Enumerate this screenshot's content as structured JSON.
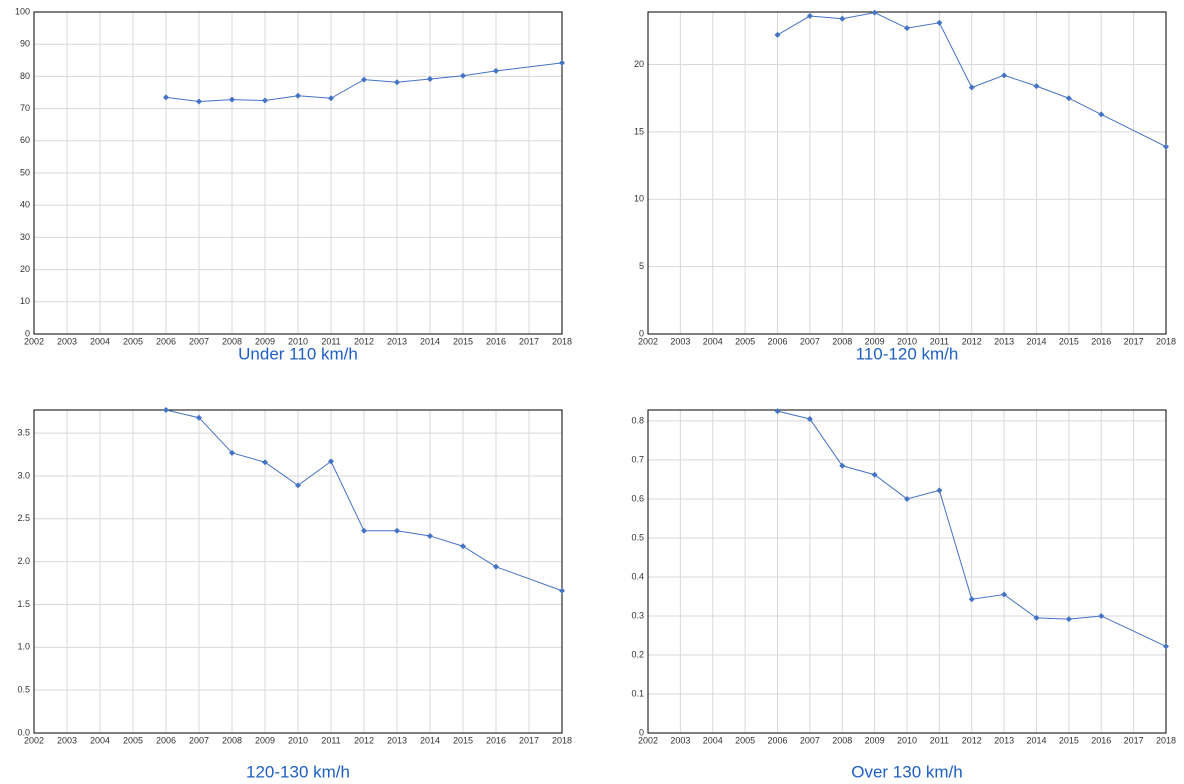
{
  "chart_data": [
    {
      "type": "line",
      "title": "Under 110 km/h",
      "color": "#4472c4",
      "grid": true,
      "x": [
        2006,
        2007,
        2008,
        2009,
        2010,
        2011,
        2012,
        2013,
        2014,
        2015,
        2016,
        2018
      ],
      "values": [
        73.5,
        72.2,
        72.8,
        72.5,
        74.0,
        73.2,
        79.0,
        78.2,
        79.2,
        80.2,
        81.7,
        84.2
      ],
      "xlim": [
        2002,
        2018
      ],
      "xticks": [
        2002,
        2003,
        2004,
        2005,
        2006,
        2007,
        2008,
        2009,
        2010,
        2011,
        2012,
        2013,
        2014,
        2015,
        2016,
        2017,
        2018
      ],
      "ylim": [
        0,
        100
      ],
      "yticks": [
        0,
        10,
        20,
        30,
        40,
        50,
        60,
        70,
        80,
        90,
        100
      ]
    },
    {
      "type": "line",
      "title": "110-120 km/h",
      "color": "#4472c4",
      "grid": true,
      "x": [
        2006,
        2007,
        2008,
        2009,
        2010,
        2011,
        2012,
        2013,
        2014,
        2015,
        2016,
        2018
      ],
      "values": [
        22.2,
        23.6,
        23.4,
        23.85,
        22.7,
        23.1,
        18.3,
        19.2,
        18.4,
        17.5,
        16.3,
        13.9
      ],
      "xlim": [
        2002,
        2018
      ],
      "xticks": [
        2002,
        2003,
        2004,
        2005,
        2006,
        2007,
        2008,
        2009,
        2010,
        2011,
        2012,
        2013,
        2014,
        2015,
        2016,
        2017,
        2018
      ],
      "ylim": [
        0,
        23.9
      ],
      "yticks": [
        0,
        5,
        10,
        15,
        20
      ]
    },
    {
      "type": "line",
      "title": "120-130 km/h",
      "color": "#4472c4",
      "grid": true,
      "x": [
        2006,
        2007,
        2008,
        2009,
        2010,
        2011,
        2012,
        2013,
        2014,
        2015,
        2016,
        2018
      ],
      "values": [
        3.77,
        3.68,
        3.27,
        3.16,
        2.89,
        3.17,
        2.36,
        2.36,
        2.3,
        2.18,
        1.94,
        1.66
      ],
      "xlim": [
        2002,
        2018
      ],
      "xticks": [
        2002,
        2003,
        2004,
        2005,
        2006,
        2007,
        2008,
        2009,
        2010,
        2011,
        2012,
        2013,
        2014,
        2015,
        2016,
        2017,
        2018
      ],
      "ylim": [
        0,
        3.77
      ],
      "yticks": [
        {
          "value": 0,
          "label": "0.0"
        },
        0.5,
        {
          "value": 1,
          "label": "1.0"
        },
        1.5,
        {
          "value": 2,
          "label": "2.0"
        },
        2.5,
        {
          "value": 3,
          "label": "3.0"
        },
        3.5
      ]
    },
    {
      "type": "line",
      "title": "Over 130 km/h",
      "color": "#4472c4",
      "grid": true,
      "x": [
        2006,
        2007,
        2008,
        2009,
        2010,
        2011,
        2012,
        2013,
        2014,
        2015,
        2016,
        2018
      ],
      "values": [
        0.825,
        0.805,
        0.685,
        0.662,
        0.6,
        0.622,
        0.343,
        0.355,
        0.295,
        0.292,
        0.3,
        0.222
      ],
      "xlim": [
        2002,
        2018
      ],
      "xticks": [
        2002,
        2003,
        2004,
        2005,
        2006,
        2007,
        2008,
        2009,
        2010,
        2011,
        2012,
        2013,
        2014,
        2015,
        2016,
        2017,
        2018
      ],
      "ylim": [
        0,
        0.828
      ],
      "yticks": [
        0,
        0.1,
        0.2,
        0.3,
        0.4,
        0.5,
        0.6,
        0.7,
        0.8
      ]
    }
  ]
}
